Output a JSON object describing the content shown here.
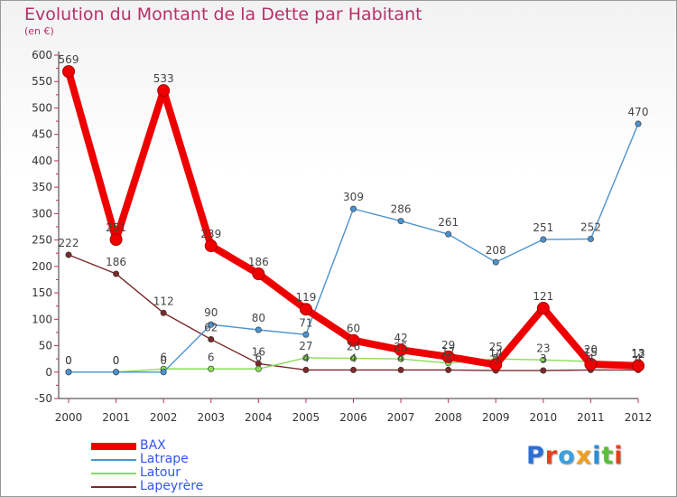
{
  "title": "Evolution du Montant de la Dette par Habitant",
  "subtitle": "(en €)",
  "logo_text": "Proxiti",
  "chart_data": {
    "type": "line",
    "title": "Evolution du Montant de la Dette par Habitant",
    "subtitle": "(en €)",
    "x": [
      "2000",
      "2001",
      "2002",
      "2003",
      "2004",
      "2005",
      "2006",
      "2007",
      "2008",
      "2009",
      "2010",
      "2011",
      "2012"
    ],
    "ylim": [
      -50,
      600
    ],
    "yticks": [
      -50,
      0,
      50,
      100,
      150,
      200,
      250,
      300,
      350,
      400,
      450,
      500,
      550,
      600
    ],
    "grid": false,
    "legend_position": "bottom-left",
    "series": [
      {
        "name": "BAX",
        "color": "#ee0000",
        "values": [
          569,
          251,
          533,
          239,
          186,
          119,
          60,
          42,
          29,
          14,
          121,
          15,
          12
        ],
        "labels": [
          "569",
          "251",
          "533",
          "239",
          "186",
          "119",
          "60",
          "42",
          "29",
          "14",
          "121",
          "15",
          "12"
        ]
      },
      {
        "name": "Latrape",
        "color": "#4b93cf",
        "values": [
          0,
          0,
          0,
          90,
          80,
          71,
          309,
          286,
          261,
          208,
          251,
          252,
          470
        ],
        "labels": [
          "0",
          "0",
          "0",
          "90",
          "80",
          "71",
          "309",
          "286",
          "261",
          "208",
          "251",
          "252",
          "470"
        ]
      },
      {
        "name": "Latour",
        "color": "#88dd55",
        "values": [
          0,
          0,
          6,
          6,
          6,
          27,
          26,
          25,
          17,
          25,
          23,
          20,
          13
        ],
        "labels": [
          "0",
          "0",
          "6",
          "6",
          "6",
          "27",
          "26",
          "25",
          "17",
          "25",
          "23",
          "20",
          "13"
        ]
      },
      {
        "name": "Lapeyrère",
        "color": "#7a2a2a",
        "values": [
          222,
          186,
          112,
          62,
          16,
          4,
          4,
          4,
          4,
          3,
          3,
          4,
          4
        ],
        "labels": [
          "222",
          "186",
          "112",
          "62",
          "16",
          "4",
          "4",
          "4",
          "4",
          "3",
          "3",
          "4",
          "4"
        ]
      }
    ]
  }
}
